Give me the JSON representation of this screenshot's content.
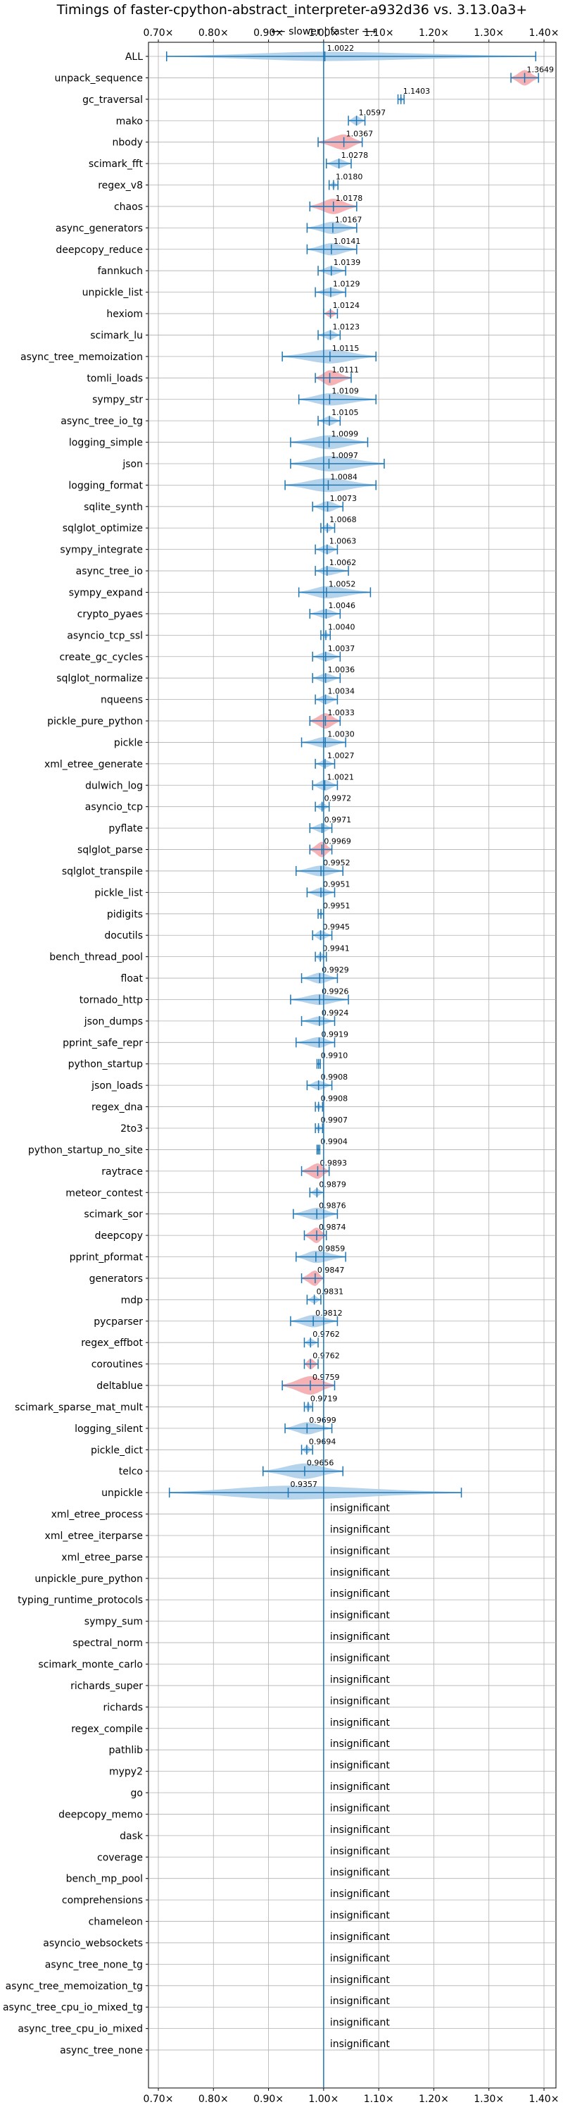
{
  "chart_data": {
    "type": "violin",
    "title": "Timings of faster-cpython-abstract_interpreter-a932d36 vs. 3.13.0a3+",
    "speed_hint": "⟵ slower | faster ⟶",
    "xlim": [
      0.7,
      1.4
    ],
    "x_ticks": [
      "0.70×",
      "0.80×",
      "0.90×",
      "1.00×",
      "1.10×",
      "1.20×",
      "1.30×",
      "1.40×"
    ],
    "x_tick_values": [
      0.7,
      0.8,
      0.9,
      1.0,
      1.1,
      1.2,
      1.3,
      1.4
    ],
    "insignificant_label": "insignificant",
    "benchmarks": [
      {
        "name": "ALL",
        "value": 1.0022,
        "label": "1.0022",
        "lo": 0.715,
        "hi": 1.385,
        "w": 0.6,
        "red": false
      },
      {
        "name": "unpack_sequence",
        "value": 1.3649,
        "label": "1.3649",
        "lo": 1.34,
        "hi": 1.39,
        "w": 1.0,
        "red": true
      },
      {
        "name": "gc_traversal",
        "value": 1.1403,
        "label": "1.1403",
        "lo": 1.135,
        "hi": 1.146,
        "w": 0.3,
        "red": false
      },
      {
        "name": "mako",
        "value": 1.0597,
        "label": "1.0597",
        "lo": 1.045,
        "hi": 1.075,
        "w": 0.6,
        "red": false
      },
      {
        "name": "nbody",
        "value": 1.0367,
        "label": "1.0367",
        "lo": 0.99,
        "hi": 1.07,
        "w": 1.0,
        "red": true
      },
      {
        "name": "scimark_fft",
        "value": 1.0278,
        "label": "1.0278",
        "lo": 1.005,
        "hi": 1.05,
        "w": 0.6,
        "red": false
      },
      {
        "name": "regex_v8",
        "value": 1.018,
        "label": "1.0180",
        "lo": 1.01,
        "hi": 1.026,
        "w": 0.4,
        "red": false
      },
      {
        "name": "chaos",
        "value": 1.0178,
        "label": "1.0178",
        "lo": 0.975,
        "hi": 1.06,
        "w": 1.0,
        "red": true
      },
      {
        "name": "async_generators",
        "value": 1.0167,
        "label": "1.0167",
        "lo": 0.97,
        "hi": 1.06,
        "w": 0.8,
        "red": false
      },
      {
        "name": "deepcopy_reduce",
        "value": 1.0141,
        "label": "1.0141",
        "lo": 0.97,
        "hi": 1.06,
        "w": 0.8,
        "red": false
      },
      {
        "name": "fannkuch",
        "value": 1.0139,
        "label": "1.0139",
        "lo": 0.99,
        "hi": 1.04,
        "w": 0.6,
        "red": false
      },
      {
        "name": "unpickle_list",
        "value": 1.0129,
        "label": "1.0129",
        "lo": 0.985,
        "hi": 1.04,
        "w": 0.6,
        "red": false
      },
      {
        "name": "hexiom",
        "value": 1.0124,
        "label": "1.0124",
        "lo": 1.0,
        "hi": 1.025,
        "w": 0.5,
        "red": true
      },
      {
        "name": "scimark_lu",
        "value": 1.0123,
        "label": "1.0123",
        "lo": 0.99,
        "hi": 1.03,
        "w": 0.6,
        "red": false
      },
      {
        "name": "async_tree_memoization",
        "value": 1.0115,
        "label": "1.0115",
        "lo": 0.925,
        "hi": 1.095,
        "w": 0.9,
        "red": false
      },
      {
        "name": "tomli_loads",
        "value": 1.0111,
        "label": "1.0111",
        "lo": 0.985,
        "hi": 1.05,
        "w": 1.0,
        "red": true
      },
      {
        "name": "sympy_str",
        "value": 1.0109,
        "label": "1.0109",
        "lo": 0.955,
        "hi": 1.095,
        "w": 0.8,
        "red": false
      },
      {
        "name": "async_tree_io_tg",
        "value": 1.0105,
        "label": "1.0105",
        "lo": 0.99,
        "hi": 1.03,
        "w": 0.6,
        "red": false
      },
      {
        "name": "logging_simple",
        "value": 1.0099,
        "label": "1.0099",
        "lo": 0.94,
        "hi": 1.08,
        "w": 0.9,
        "red": false
      },
      {
        "name": "json",
        "value": 1.0097,
        "label": "1.0097",
        "lo": 0.94,
        "hi": 1.11,
        "w": 1.0,
        "red": false
      },
      {
        "name": "logging_format",
        "value": 1.0084,
        "label": "1.0084",
        "lo": 0.93,
        "hi": 1.095,
        "w": 0.9,
        "red": false
      },
      {
        "name": "sqlite_synth",
        "value": 1.0073,
        "label": "1.0073",
        "lo": 0.98,
        "hi": 1.035,
        "w": 0.7,
        "red": false
      },
      {
        "name": "sqlglot_optimize",
        "value": 1.0068,
        "label": "1.0068",
        "lo": 0.995,
        "hi": 1.02,
        "w": 0.5,
        "red": false
      },
      {
        "name": "sympy_integrate",
        "value": 1.0063,
        "label": "1.0063",
        "lo": 0.985,
        "hi": 1.025,
        "w": 0.6,
        "red": false
      },
      {
        "name": "async_tree_io",
        "value": 1.0062,
        "label": "1.0062",
        "lo": 0.985,
        "hi": 1.045,
        "w": 0.6,
        "red": false
      },
      {
        "name": "sympy_expand",
        "value": 1.0052,
        "label": "1.0052",
        "lo": 0.955,
        "hi": 1.085,
        "w": 0.8,
        "red": false
      },
      {
        "name": "crypto_pyaes",
        "value": 1.0046,
        "label": "1.0046",
        "lo": 0.975,
        "hi": 1.03,
        "w": 0.6,
        "red": false
      },
      {
        "name": "asyncio_tcp_ssl",
        "value": 1.004,
        "label": "1.0040",
        "lo": 0.995,
        "hi": 1.012,
        "w": 0.4,
        "red": false
      },
      {
        "name": "create_gc_cycles",
        "value": 1.0037,
        "label": "1.0037",
        "lo": 0.98,
        "hi": 1.03,
        "w": 0.6,
        "red": false
      },
      {
        "name": "sqlglot_normalize",
        "value": 1.0036,
        "label": "1.0036",
        "lo": 0.98,
        "hi": 1.03,
        "w": 0.6,
        "red": false
      },
      {
        "name": "nqueens",
        "value": 1.0034,
        "label": "1.0034",
        "lo": 0.985,
        "hi": 1.025,
        "w": 0.6,
        "red": false
      },
      {
        "name": "pickle_pure_python",
        "value": 1.0033,
        "label": "1.0033",
        "lo": 0.975,
        "hi": 1.03,
        "w": 1.0,
        "red": true
      },
      {
        "name": "pickle",
        "value": 1.003,
        "label": "1.0030",
        "lo": 0.96,
        "hi": 1.04,
        "w": 0.7,
        "red": false
      },
      {
        "name": "xml_etree_generate",
        "value": 1.0027,
        "label": "1.0027",
        "lo": 0.985,
        "hi": 1.02,
        "w": 0.5,
        "red": false
      },
      {
        "name": "dulwich_log",
        "value": 1.0021,
        "label": "1.0021",
        "lo": 0.98,
        "hi": 1.025,
        "w": 0.7,
        "red": false
      },
      {
        "name": "asyncio_tcp",
        "value": 0.9972,
        "label": "0.9972",
        "lo": 0.985,
        "hi": 1.01,
        "w": 0.5,
        "red": false
      },
      {
        "name": "pyflate",
        "value": 0.9971,
        "label": "0.9971",
        "lo": 0.975,
        "hi": 1.015,
        "w": 0.6,
        "red": false
      },
      {
        "name": "sqlglot_parse",
        "value": 0.9969,
        "label": "0.9969",
        "lo": 0.975,
        "hi": 1.015,
        "w": 1.0,
        "red": true
      },
      {
        "name": "sqlglot_transpile",
        "value": 0.9952,
        "label": "0.9952",
        "lo": 0.95,
        "hi": 1.035,
        "w": 0.7,
        "red": false
      },
      {
        "name": "pickle_list",
        "value": 0.9951,
        "label": "0.9951",
        "lo": 0.97,
        "hi": 1.02,
        "w": 0.6,
        "red": false
      },
      {
        "name": "pidigits",
        "value": 0.9951,
        "label": "0.9951",
        "lo": 0.99,
        "hi": 1.0,
        "w": 0.3,
        "red": false
      },
      {
        "name": "docutils",
        "value": 0.9945,
        "label": "0.9945",
        "lo": 0.98,
        "hi": 1.015,
        "w": 0.6,
        "red": false
      },
      {
        "name": "bench_thread_pool",
        "value": 0.9941,
        "label": "0.9941",
        "lo": 0.985,
        "hi": 1.005,
        "w": 0.5,
        "red": false
      },
      {
        "name": "float",
        "value": 0.9929,
        "label": "0.9929",
        "lo": 0.96,
        "hi": 1.025,
        "w": 0.7,
        "red": false
      },
      {
        "name": "tornado_http",
        "value": 0.9926,
        "label": "0.9926",
        "lo": 0.94,
        "hi": 1.045,
        "w": 0.7,
        "red": false
      },
      {
        "name": "json_dumps",
        "value": 0.9924,
        "label": "0.9924",
        "lo": 0.96,
        "hi": 1.02,
        "w": 0.6,
        "red": false
      },
      {
        "name": "pprint_safe_repr",
        "value": 0.9919,
        "label": "0.9919",
        "lo": 0.95,
        "hi": 1.02,
        "w": 0.7,
        "red": false
      },
      {
        "name": "python_startup",
        "value": 0.991,
        "label": "0.9910",
        "lo": 0.988,
        "hi": 0.994,
        "w": 0.3,
        "red": false
      },
      {
        "name": "json_loads",
        "value": 0.9908,
        "label": "0.9908",
        "lo": 0.97,
        "hi": 1.015,
        "w": 0.6,
        "red": false
      },
      {
        "name": "regex_dna",
        "value": 0.9908,
        "label": "0.9908",
        "lo": 0.985,
        "hi": 0.998,
        "w": 0.4,
        "red": false
      },
      {
        "name": "2to3",
        "value": 0.9907,
        "label": "0.9907",
        "lo": 0.985,
        "hi": 0.998,
        "w": 0.4,
        "red": false
      },
      {
        "name": "python_startup_no_site",
        "value": 0.9904,
        "label": "0.9904",
        "lo": 0.988,
        "hi": 0.993,
        "w": 0.3,
        "red": false
      },
      {
        "name": "raytrace",
        "value": 0.9893,
        "label": "0.9893",
        "lo": 0.96,
        "hi": 1.01,
        "w": 1.0,
        "red": true
      },
      {
        "name": "meteor_contest",
        "value": 0.9879,
        "label": "0.9879",
        "lo": 0.975,
        "hi": 1.0,
        "w": 0.5,
        "red": false
      },
      {
        "name": "scimark_sor",
        "value": 0.9876,
        "label": "0.9876",
        "lo": 0.945,
        "hi": 1.025,
        "w": 0.8,
        "red": false
      },
      {
        "name": "deepcopy",
        "value": 0.9874,
        "label": "0.9874",
        "lo": 0.965,
        "hi": 1.005,
        "w": 1.0,
        "red": true
      },
      {
        "name": "pprint_pformat",
        "value": 0.9859,
        "label": "0.9859",
        "lo": 0.95,
        "hi": 1.04,
        "w": 0.8,
        "red": false
      },
      {
        "name": "generators",
        "value": 0.9847,
        "label": "0.9847",
        "lo": 0.96,
        "hi": 1.0,
        "w": 1.0,
        "red": true
      },
      {
        "name": "mdp",
        "value": 0.9831,
        "label": "0.9831",
        "lo": 0.97,
        "hi": 0.995,
        "w": 0.5,
        "red": false
      },
      {
        "name": "pycparser",
        "value": 0.9812,
        "label": "0.9812",
        "lo": 0.94,
        "hi": 1.025,
        "w": 0.8,
        "red": false
      },
      {
        "name": "regex_effbot",
        "value": 0.9762,
        "label": "0.9762",
        "lo": 0.965,
        "hi": 0.99,
        "w": 0.5,
        "red": false
      },
      {
        "name": "coroutines",
        "value": 0.9762,
        "label": "0.9762",
        "lo": 0.965,
        "hi": 0.99,
        "w": 0.7,
        "red": true
      },
      {
        "name": "deltablue",
        "value": 0.9759,
        "label": "0.9759",
        "lo": 0.925,
        "hi": 1.02,
        "w": 1.2,
        "red": true
      },
      {
        "name": "scimark_sparse_mat_mult",
        "value": 0.9719,
        "label": "0.9719",
        "lo": 0.965,
        "hi": 0.98,
        "w": 0.5,
        "red": false
      },
      {
        "name": "logging_silent",
        "value": 0.9699,
        "label": "0.9699",
        "lo": 0.93,
        "hi": 1.015,
        "w": 0.8,
        "red": false
      },
      {
        "name": "pickle_dict",
        "value": 0.9694,
        "label": "0.9694",
        "lo": 0.96,
        "hi": 0.98,
        "w": 0.5,
        "red": false
      },
      {
        "name": "telco",
        "value": 0.9656,
        "label": "0.9656",
        "lo": 0.89,
        "hi": 1.035,
        "w": 1.0,
        "red": false
      },
      {
        "name": "unpickle",
        "value": 0.9357,
        "label": "0.9357",
        "lo": 0.72,
        "hi": 1.25,
        "w": 0.9,
        "red": false
      },
      {
        "name": "xml_etree_process",
        "insignificant": true
      },
      {
        "name": "xml_etree_iterparse",
        "insignificant": true
      },
      {
        "name": "xml_etree_parse",
        "insignificant": true
      },
      {
        "name": "unpickle_pure_python",
        "insignificant": true
      },
      {
        "name": "typing_runtime_protocols",
        "insignificant": true
      },
      {
        "name": "sympy_sum",
        "insignificant": true
      },
      {
        "name": "spectral_norm",
        "insignificant": true
      },
      {
        "name": "scimark_monte_carlo",
        "insignificant": true
      },
      {
        "name": "richards_super",
        "insignificant": true
      },
      {
        "name": "richards",
        "insignificant": true
      },
      {
        "name": "regex_compile",
        "insignificant": true
      },
      {
        "name": "pathlib",
        "insignificant": true
      },
      {
        "name": "mypy2",
        "insignificant": true
      },
      {
        "name": "go",
        "insignificant": true
      },
      {
        "name": "deepcopy_memo",
        "insignificant": true
      },
      {
        "name": "dask",
        "insignificant": true
      },
      {
        "name": "coverage",
        "insignificant": true
      },
      {
        "name": "bench_mp_pool",
        "insignificant": true
      },
      {
        "name": "comprehensions",
        "insignificant": true
      },
      {
        "name": "chameleon",
        "insignificant": true
      },
      {
        "name": "asyncio_websockets",
        "insignificant": true
      },
      {
        "name": "async_tree_none_tg",
        "insignificant": true
      },
      {
        "name": "async_tree_memoization_tg",
        "insignificant": true
      },
      {
        "name": "async_tree_cpu_io_mixed_tg",
        "insignificant": true
      },
      {
        "name": "async_tree_cpu_io_mixed",
        "insignificant": true
      },
      {
        "name": "async_tree_none",
        "insignificant": true
      }
    ],
    "colors": {
      "line": "#1f77b4",
      "violin": "#a8cbe8",
      "violin_red": "#f4a3a8",
      "grid": "#b0b0b0"
    }
  }
}
